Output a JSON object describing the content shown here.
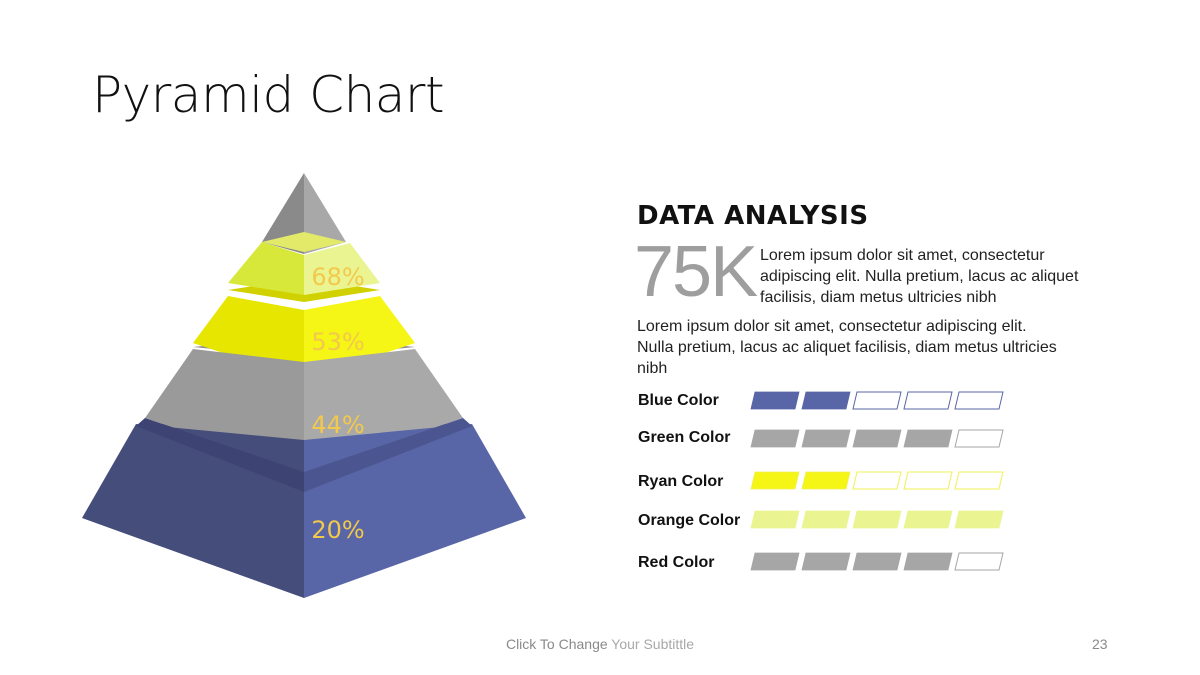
{
  "slide": {
    "title": "Pyramid Chart",
    "footer_part1": "Click To Change",
    "footer_part2": " Your Subtittle",
    "page_number": "23"
  },
  "analysis": {
    "heading": "DATA ANALYSIS",
    "stat": "75K",
    "stat_text": "Lorem ipsum dolor sit amet, consectetur adipiscing elit. Nulla pretium, lacus ac aliquet facilisis, diam metus ultricies nibh",
    "body": "Lorem ipsum dolor sit amet, consectetur adipiscing elit. Nulla pretium, lacus ac aliquet facilisis, diam metus ultricies nibh"
  },
  "colors": {
    "blue": "#5865a6",
    "gray": "#a6a6a6",
    "yellow": "#f5f516",
    "light_yellow": "#eaf592",
    "label": "#f2c94c"
  },
  "chart_data": [
    {
      "type": "pyramid",
      "levels": [
        {
          "label": "68%",
          "value": 68
        },
        {
          "label": "53%",
          "value": 53
        },
        {
          "label": "44%",
          "value": 44
        },
        {
          "label": "20%",
          "value": 20
        }
      ]
    },
    {
      "type": "bar",
      "segments_total": 5,
      "series": [
        {
          "name": "Blue Color",
          "value": 2,
          "color": "#5865a6",
          "border": "#5865a6"
        },
        {
          "name": "Green Color",
          "value": 4,
          "color": "#a6a6a6",
          "border": "#a6a6a6"
        },
        {
          "name": "Ryan Color",
          "value": 2,
          "color": "#f5f516",
          "border": "#f0f055"
        },
        {
          "name": "Orange Color",
          "value": 5,
          "color": "#eaf592",
          "border": "#eaf592"
        },
        {
          "name": "Red Color",
          "value": 4,
          "color": "#a6a6a6",
          "border": "#a6a6a6"
        }
      ]
    }
  ]
}
